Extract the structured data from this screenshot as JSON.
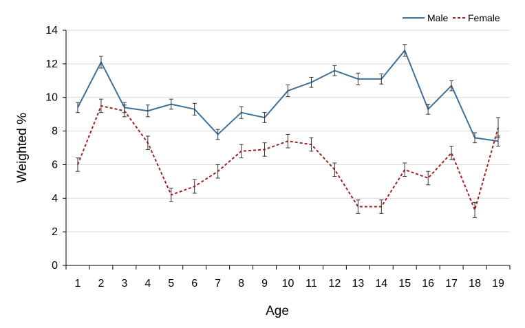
{
  "chart_data": {
    "type": "line",
    "title": "",
    "xlabel": "Age",
    "ylabel": "Weighted %",
    "categories": [
      "1",
      "2",
      "3",
      "4",
      "5",
      "6",
      "7",
      "8",
      "9",
      "10",
      "11",
      "12",
      "13",
      "14",
      "15",
      "16",
      "17",
      "18",
      "19"
    ],
    "ylim": [
      0,
      14
    ],
    "yticks": [
      0,
      2,
      4,
      6,
      8,
      10,
      12,
      14
    ],
    "grid": "horizontal",
    "legend_position": "top-right",
    "series": [
      {
        "name": "Male",
        "color": "#3F6F9A",
        "dash": "solid",
        "values": [
          9.4,
          12.1,
          9.4,
          9.2,
          9.6,
          9.3,
          7.8,
          9.1,
          8.8,
          10.4,
          10.9,
          11.6,
          11.1,
          11.1,
          12.8,
          9.3,
          10.7,
          7.6,
          7.4
        ],
        "error": [
          0.3,
          0.35,
          0.3,
          0.35,
          0.3,
          0.35,
          0.3,
          0.35,
          0.3,
          0.35,
          0.3,
          0.3,
          0.35,
          0.3,
          0.35,
          0.3,
          0.3,
          0.3,
          0.3
        ]
      },
      {
        "name": "Female",
        "color": "#A0201F",
        "dash": "dashed",
        "values": [
          6.0,
          9.5,
          9.2,
          7.3,
          4.2,
          4.7,
          5.6,
          6.8,
          6.9,
          7.4,
          7.2,
          5.7,
          3.5,
          3.5,
          5.7,
          5.2,
          6.7,
          3.3,
          8.2
        ],
        "error": [
          0.4,
          0.4,
          0.35,
          0.4,
          0.4,
          0.4,
          0.4,
          0.4,
          0.4,
          0.4,
          0.4,
          0.4,
          0.4,
          0.4,
          0.4,
          0.4,
          0.4,
          0.45,
          0.6
        ]
      }
    ]
  }
}
